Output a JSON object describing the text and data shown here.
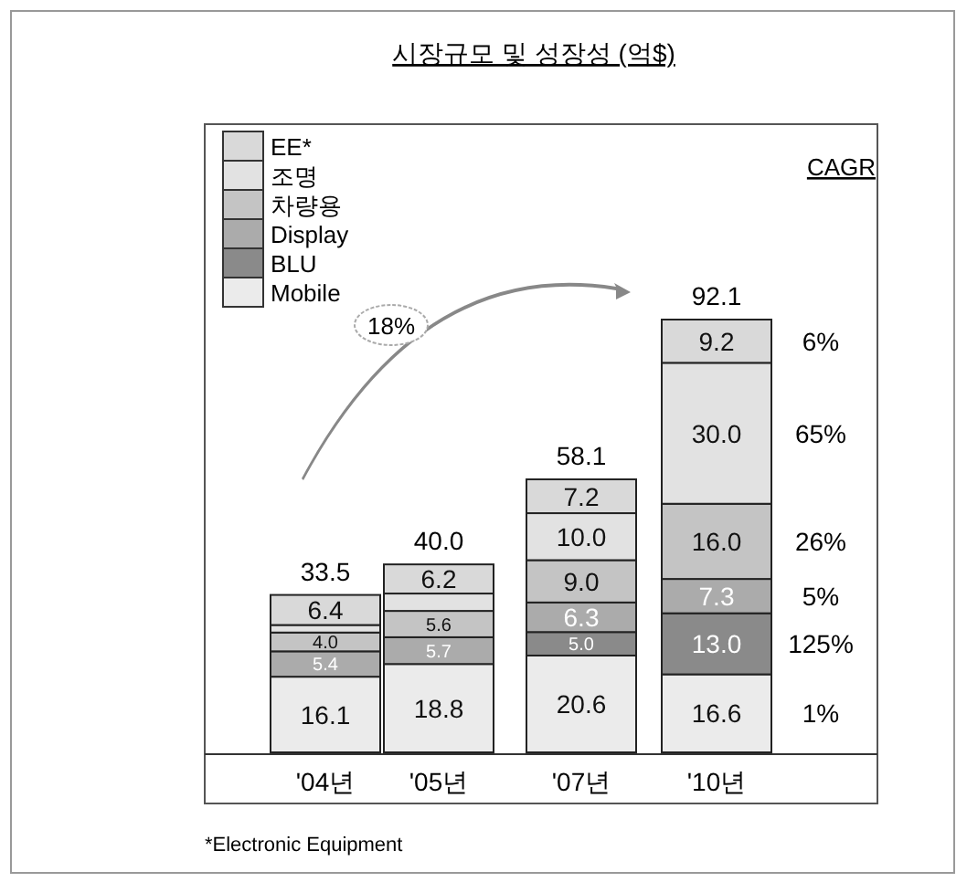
{
  "chart_data": {
    "type": "bar",
    "stacked": true,
    "title": "시장규모 및 성장성 (억$)",
    "categories": [
      "'04년",
      "'05년",
      "'07년",
      "'10년"
    ],
    "series": [
      {
        "name": "Mobile",
        "color": "#ebebeb",
        "values": [
          16.1,
          18.8,
          20.6,
          16.6
        ],
        "value_labels": [
          "16.1",
          "18.8",
          "20.6",
          "16.6"
        ]
      },
      {
        "name": "BLU",
        "color": "#8a8a8a",
        "values": [
          null,
          null,
          5.0,
          13.0
        ],
        "value_labels": [
          null,
          null,
          "5.0",
          "13.0"
        ]
      },
      {
        "name": "Display",
        "color": "#ababab",
        "values": [
          5.4,
          5.7,
          6.3,
          7.3
        ],
        "value_labels": [
          "5.4",
          "5.7",
          "6.3",
          "7.3"
        ]
      },
      {
        "name": "차량용",
        "color": "#c4c4c4",
        "values": [
          4.0,
          5.6,
          9.0,
          16.0
        ],
        "value_labels": [
          "4.0",
          "5.6",
          "9.0",
          "16.0"
        ]
      },
      {
        "name": "조명",
        "color": "#e2e2e2",
        "values": [
          1.6,
          3.7,
          10.0,
          30.0
        ],
        "value_labels": [
          null,
          null,
          "10.0",
          "30.0"
        ]
      },
      {
        "name": "EE*",
        "color": "#d9d9d9",
        "values": [
          6.4,
          6.2,
          7.2,
          9.2
        ],
        "value_labels": [
          "6.4",
          "6.2",
          "7.2",
          "9.2"
        ]
      }
    ],
    "totals": [
      "33.5",
      "40.0",
      "58.1",
      "92.1"
    ],
    "legend": "top left",
    "annotations": [
      {
        "text": "CAGR"
      },
      "1%",
      "125%",
      "5%",
      "26%",
      "65%",
      "6%",
      {
        "text": "18%"
      },
      {
        "text": "*Electronic Equipment"
      }
    ]
  }
}
